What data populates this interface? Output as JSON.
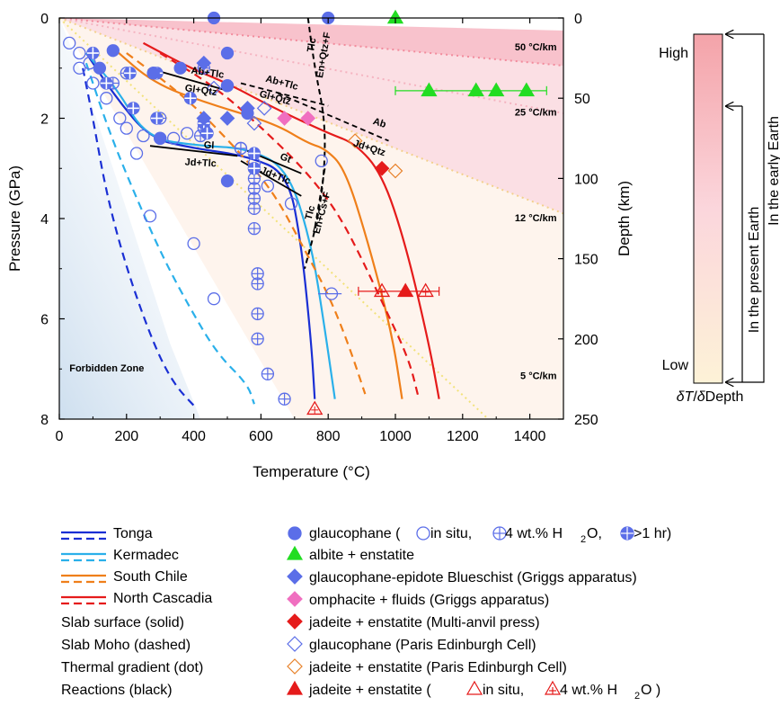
{
  "chart_data": {
    "type": "line",
    "xlabel": "Temperature (°C)",
    "ylabel_left": "Pressure (GPa)",
    "ylabel_right": "Depth (km)",
    "xlim": [
      0,
      1500
    ],
    "ylim_pressure": [
      0,
      8
    ],
    "ylim_depth": [
      0,
      250
    ],
    "x_ticks": [
      "0",
      "200",
      "400",
      "600",
      "800",
      "1000",
      "1200",
      "1400"
    ],
    "y_ticks_left": [
      "0",
      "2",
      "4",
      "6",
      "8"
    ],
    "y_ticks_right": [
      "0",
      "50",
      "100",
      "150",
      "200",
      "250"
    ],
    "region_labels": {
      "forbidden_zone": "Forbidden Zone",
      "gradients": [
        "50 °C/km",
        "25 °C/km",
        "12 °C/km",
        "5 °C/km"
      ]
    },
    "thermal_gradients": [
      {
        "label": "50 °C/km",
        "points": [
          [
            0,
            0
          ],
          [
            1500,
            0.95
          ]
        ]
      },
      {
        "label": "25 °C/km",
        "points": [
          [
            0,
            0
          ],
          [
            1500,
            1.9
          ]
        ]
      },
      {
        "label": "12 °C/km",
        "points": [
          [
            0,
            0
          ],
          [
            1500,
            3.9
          ]
        ]
      },
      {
        "label": "5 °C/km",
        "points": [
          [
            0,
            0
          ],
          [
            1500,
            9.4
          ]
        ]
      }
    ],
    "series": [
      {
        "name": "Tonga",
        "color": "#1a2fd4",
        "surface": [
          [
            80,
            0.7
          ],
          [
            170,
            1.6
          ],
          [
            270,
            2.4
          ],
          [
            400,
            2.6
          ],
          [
            560,
            2.75
          ],
          [
            680,
            3.1
          ],
          [
            720,
            4.5
          ],
          [
            750,
            6.5
          ],
          [
            760,
            7.6
          ]
        ],
        "moho": [
          [
            70,
            1.0
          ],
          [
            100,
            2.0
          ],
          [
            140,
            3.5
          ],
          [
            200,
            5.0
          ],
          [
            280,
            6.5
          ],
          [
            340,
            7.3
          ],
          [
            410,
            7.8
          ]
        ]
      },
      {
        "name": "Kermadec",
        "color": "#2ab0ea",
        "surface": [
          [
            80,
            0.7
          ],
          [
            170,
            1.4
          ],
          [
            260,
            2.4
          ],
          [
            420,
            2.55
          ],
          [
            560,
            2.6
          ],
          [
            680,
            3.0
          ],
          [
            750,
            4.5
          ],
          [
            790,
            6.2
          ],
          [
            820,
            7.6
          ]
        ],
        "moho": [
          [
            80,
            0.9
          ],
          [
            150,
            2.3
          ],
          [
            230,
            3.6
          ],
          [
            310,
            4.8
          ],
          [
            390,
            5.8
          ],
          [
            470,
            6.7
          ],
          [
            560,
            7.3
          ],
          [
            580,
            7.7
          ]
        ]
      },
      {
        "name": "South Chile",
        "color": "#ef7f1a",
        "surface": [
          [
            160,
            0.6
          ],
          [
            280,
            1.3
          ],
          [
            440,
            1.7
          ],
          [
            640,
            2.1
          ],
          [
            740,
            2.5
          ],
          [
            790,
            2.6
          ],
          [
            850,
            3.0
          ],
          [
            920,
            4.5
          ],
          [
            990,
            6.3
          ],
          [
            1020,
            7.6
          ]
        ],
        "moho": [
          [
            200,
            0.7
          ],
          [
            380,
            1.6
          ],
          [
            540,
            2.7
          ],
          [
            640,
            3.5
          ],
          [
            720,
            4.5
          ],
          [
            800,
            5.5
          ],
          [
            860,
            6.5
          ],
          [
            910,
            7.5
          ]
        ]
      },
      {
        "name": "North Cascadia",
        "color": "#e51b1b",
        "surface": [
          [
            250,
            0.5
          ],
          [
            390,
            1.0
          ],
          [
            500,
            1.3
          ],
          [
            640,
            1.8
          ],
          [
            800,
            2.3
          ],
          [
            880,
            2.5
          ],
          [
            960,
            3.1
          ],
          [
            1030,
            4.5
          ],
          [
            1100,
            6.5
          ],
          [
            1130,
            7.6
          ]
        ],
        "moho": [
          [
            300,
            0.7
          ],
          [
            470,
            1.4
          ],
          [
            620,
            2.3
          ],
          [
            740,
            3.1
          ],
          [
            830,
            3.9
          ],
          [
            900,
            4.8
          ],
          [
            970,
            5.8
          ],
          [
            1040,
            6.8
          ],
          [
            1070,
            7.6
          ]
        ]
      }
    ],
    "reactions": [
      {
        "name": "Tlc / En+Qtz+F",
        "labels": [
          "Tlc",
          "En+Qtz+F"
        ],
        "points": [
          [
            740,
            0
          ],
          [
            760,
            1.0
          ],
          [
            790,
            2.0
          ],
          [
            790,
            3.0
          ],
          [
            770,
            4.0
          ],
          [
            730,
            5.0
          ]
        ]
      },
      {
        "name": "Ab+Tlc / Gl+Qtz",
        "labels": [
          "Ab+Tlc",
          "Gl+Qtz"
        ],
        "points": [
          [
            290,
            1.05
          ],
          [
            500,
            1.45
          ]
        ]
      },
      {
        "name": "Ab+Tlc / Gl+Qtz (2)",
        "labels": [
          "Ab+Tlc",
          "Gl+Qtz"
        ],
        "points": [
          [
            540,
            1.3
          ],
          [
            800,
            1.75
          ]
        ]
      },
      {
        "name": "Ab / Jd+Qtz",
        "labels": [
          "Ab",
          "Jd+Qtz"
        ],
        "points": [
          [
            650,
            1.5
          ],
          [
            980,
            2.45
          ]
        ]
      },
      {
        "name": "Gl / Jd+Tlc",
        "labels": [
          "Gl",
          "Jd+Tlc"
        ],
        "points": [
          [
            270,
            2.55
          ],
          [
            530,
            2.75
          ]
        ]
      },
      {
        "name": "Gt / Jd+Tlc",
        "labels": [
          "Gt",
          "Jd+Tlc"
        ],
        "points": [
          [
            560,
            2.65
          ],
          [
            720,
            3.1
          ]
        ]
      },
      {
        "name": "Gl / Jd+Tlc (2)",
        "labels": [],
        "points": [
          [
            540,
            2.85
          ],
          [
            720,
            3.55
          ]
        ]
      },
      {
        "name": "Tlc / En+Cs+F",
        "labels": [
          "Tlc",
          "En+Cs+F"
        ],
        "points": [
          [
            790,
            3.0
          ],
          [
            760,
            4.2
          ]
        ]
      }
    ],
    "markers": {
      "glaucophane_filled": [
        [
          460,
          0.0
        ],
        [
          160,
          0.65
        ],
        [
          500,
          0.7
        ],
        [
          360,
          1.0
        ],
        [
          280,
          1.1
        ],
        [
          120,
          1.0
        ],
        [
          500,
          1.35
        ],
        [
          560,
          1.9
        ],
        [
          300,
          2.4
        ],
        [
          500,
          3.25
        ],
        [
          800,
          0.0
        ]
      ],
      "glaucophane_insitu": [
        [
          30,
          0.5
        ],
        [
          60,
          0.7
        ],
        [
          90,
          0.9
        ],
        [
          60,
          1.0
        ],
        [
          100,
          1.3
        ],
        [
          140,
          1.6
        ],
        [
          180,
          2.0
        ],
        [
          200,
          2.2
        ],
        [
          250,
          2.35
        ],
        [
          300,
          2.4
        ],
        [
          340,
          2.4
        ],
        [
          380,
          2.3
        ],
        [
          430,
          2.2
        ],
        [
          230,
          2.7
        ],
        [
          540,
          2.6
        ],
        [
          580,
          2.9
        ],
        [
          620,
          3.35
        ],
        [
          690,
          3.7
        ],
        [
          270,
          3.95
        ],
        [
          400,
          4.5
        ],
        [
          460,
          5.6
        ],
        [
          780,
          2.85
        ],
        [
          810,
          5.5
        ]
      ],
      "glaucophane_4wt": [
        [
          220,
          1.8
        ],
        [
          300,
          2.0
        ],
        [
          420,
          2.35
        ],
        [
          540,
          2.6
        ],
        [
          580,
          3.0
        ],
        [
          580,
          3.2
        ],
        [
          580,
          3.4
        ],
        [
          580,
          3.6
        ],
        [
          580,
          3.8
        ],
        [
          580,
          4.2
        ],
        [
          590,
          5.1
        ],
        [
          590,
          5.3
        ],
        [
          590,
          5.9
        ],
        [
          590,
          6.4
        ],
        [
          620,
          7.1
        ],
        [
          670,
          7.6
        ],
        [
          500,
          1.35
        ],
        [
          430,
          1.0
        ],
        [
          280,
          1.1
        ],
        [
          200,
          1.1
        ],
        [
          160,
          1.3
        ]
      ],
      "glaucophane_1hr": [
        [
          100,
          0.7
        ],
        [
          140,
          1.3
        ],
        [
          210,
          1.1
        ],
        [
          290,
          1.1
        ],
        [
          390,
          1.6
        ],
        [
          220,
          1.8
        ],
        [
          290,
          2.0
        ],
        [
          430,
          2.1
        ],
        [
          440,
          2.3
        ],
        [
          580,
          2.7
        ],
        [
          580,
          3.0
        ]
      ],
      "albite_enstatite": [
        [
          1000,
          0.0
        ],
        [
          1100,
          1.45
        ],
        [
          1240,
          1.45
        ],
        [
          1300,
          1.45
        ],
        [
          1390,
          1.45
        ]
      ],
      "gl_ep_blueschist": [
        [
          430,
          0.9
        ],
        [
          500,
          2.0
        ],
        [
          560,
          1.8
        ],
        [
          430,
          2.0
        ]
      ],
      "omphacite_fluids": [
        [
          670,
          2.0
        ],
        [
          740,
          2.0
        ]
      ],
      "jadeite_enstatite_map": [
        [
          960,
          3.0
        ]
      ],
      "glaucophane_pec": [
        [
          460,
          1.4
        ],
        [
          610,
          1.8
        ],
        [
          580,
          2.1
        ]
      ],
      "jadeite_enstatite_pec": [
        [
          880,
          2.45
        ],
        [
          1000,
          3.05
        ]
      ],
      "jadeite_enstatite_filled_tri": [
        [
          1030,
          5.45
        ]
      ],
      "jadeite_enstatite_insitu_tri": [
        [
          960,
          5.45
        ],
        [
          1090,
          5.45
        ],
        [
          760,
          7.8
        ]
      ]
    }
  },
  "colorbar": {
    "top_label": "High",
    "bottom_label": "Low",
    "axis_label_delta": "δ",
    "axis_label_T": "T",
    "axis_label_slash": "/",
    "axis_label_depth": "Depth",
    "arrow_labels": [
      "In the early Earth",
      "In the present Earth"
    ],
    "color_top": "#f4a3a9",
    "color_bottom": "#fdf2d7"
  },
  "legend": {
    "lines": [
      {
        "label": "Tonga",
        "color": "#1a2fd4"
      },
      {
        "label": "Kermadec",
        "color": "#2ab0ea"
      },
      {
        "label": "South Chile",
        "color": "#ef7f1a"
      },
      {
        "label": "North Cascadia",
        "color": "#e51b1b"
      }
    ],
    "notes": [
      "Slab surface (solid)",
      "Slab Moho (dashed)",
      "Thermal gradient (dot)",
      "Reactions (black)"
    ],
    "markers": [
      {
        "label": "glaucophane (",
        "sub_a": " in situ, ",
        "sub_b": " 4 wt.% H",
        "sub_c": "2",
        "sub_d": "O, ",
        "sub_e": " >1 hr)"
      },
      {
        "label": "albite + enstatite"
      },
      {
        "label": "glaucophane-epidote Blueschist (Griggs apparatus)"
      },
      {
        "label": "omphacite + fluids (Griggs apparatus)"
      },
      {
        "label": "jadeite + enstatite (Multi-anvil press)"
      },
      {
        "label": "glaucophane (Paris Edinburgh Cell)"
      },
      {
        "label": "jadeite + enstatite (Paris Edinburgh Cell)"
      },
      {
        "label": "jadeite + enstatite (",
        "sub_a": " in situ, ",
        "sub_b": " 4 wt.% H",
        "sub_c": "2",
        "sub_d": "O )"
      }
    ],
    "colors": {
      "glaucophane": "#5b6ee8",
      "albite": "#22dd22",
      "blueschist": "#5b6ee8",
      "omphacite": "#f06fc0",
      "jadeite_map": "#e51b1b",
      "pec_gl": "#5b6ee8",
      "pec_jd": "#e8822a",
      "jd_tri": "#e51b1b"
    }
  }
}
